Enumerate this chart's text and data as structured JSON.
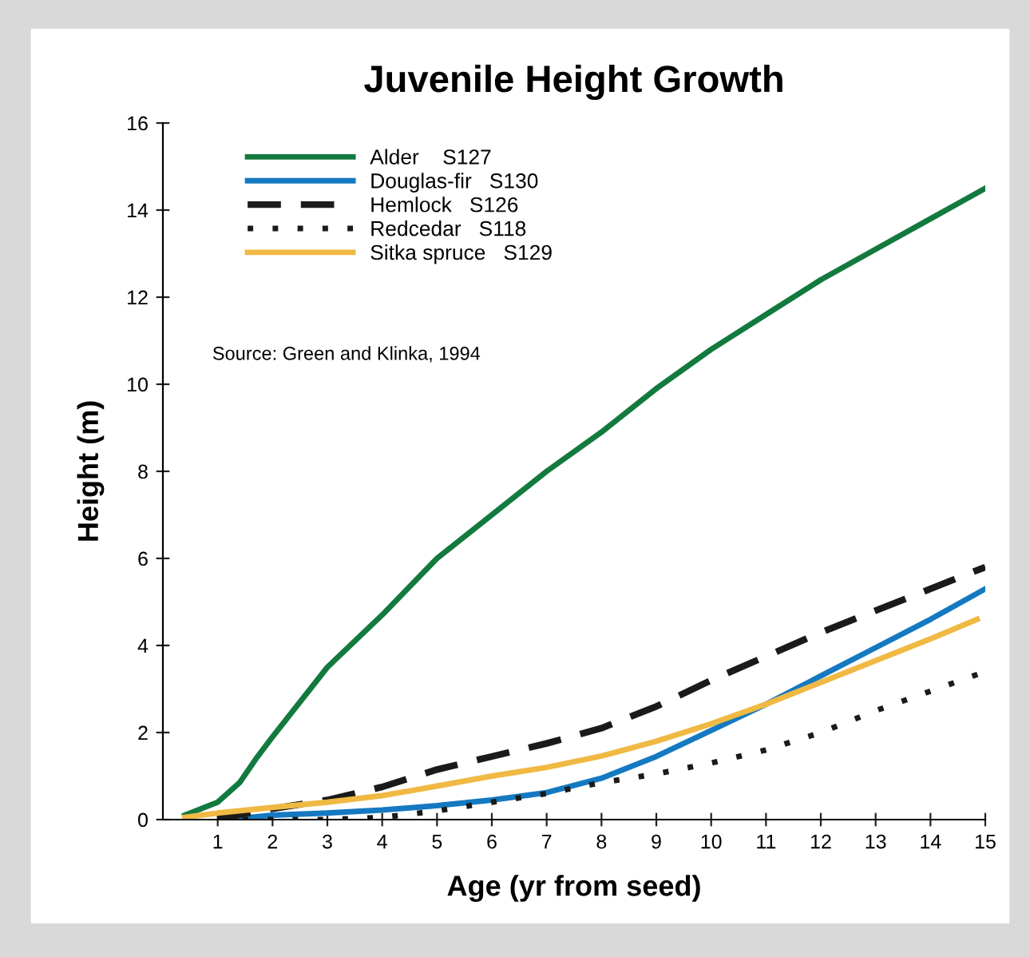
{
  "chart_data": {
    "type": "line",
    "title": "Juvenile Height Growth",
    "xlabel": "Age (yr from seed)",
    "ylabel": "Height (m)",
    "xlim": [
      0,
      15
    ],
    "xticks": [
      1,
      2,
      3,
      4,
      5,
      6,
      7,
      8,
      9,
      10,
      11,
      12,
      13,
      14,
      15
    ],
    "ylim": [
      0,
      16
    ],
    "yticks": [
      0,
      2,
      4,
      6,
      8,
      10,
      12,
      14,
      16
    ],
    "grid": false,
    "legend": "top left",
    "annotations": [
      "Source: Green and Klinka, 1994"
    ],
    "series": [
      {
        "name": "Alder    S127",
        "color": "#137a3f",
        "line_style": "solid",
        "x": [
          0.4,
          1,
          1.4,
          1.7,
          2,
          3,
          4,
          5,
          6,
          7,
          8,
          9,
          10,
          11,
          12,
          13,
          14,
          15
        ],
        "values": [
          0.1,
          0.4,
          0.85,
          1.4,
          1.9,
          3.5,
          4.7,
          6.0,
          7.0,
          8.0,
          8.9,
          9.9,
          10.8,
          11.6,
          12.4,
          13.1,
          13.8,
          14.5
        ]
      },
      {
        "name": "Douglas-fir   S130",
        "color": "#1479c1",
        "line_style": "solid",
        "x": [
          1.2,
          2,
          3,
          4,
          5,
          6,
          7,
          8,
          9,
          10,
          11,
          12,
          13,
          14,
          15
        ],
        "values": [
          0,
          0.1,
          0.15,
          0.22,
          0.32,
          0.45,
          0.62,
          0.95,
          1.45,
          2.05,
          2.65,
          3.3,
          3.95,
          4.6,
          5.3
        ]
      },
      {
        "name": "Hemlock   S126",
        "color": "#1a1a1a",
        "line_style": "dashed",
        "x": [
          1,
          2,
          3,
          4,
          5,
          6,
          7,
          8,
          9,
          10,
          11,
          12,
          13,
          14,
          15
        ],
        "values": [
          0.02,
          0.25,
          0.45,
          0.75,
          1.15,
          1.45,
          1.75,
          2.1,
          2.6,
          3.2,
          3.75,
          4.3,
          4.8,
          5.3,
          5.8
        ]
      },
      {
        "name": "Redcedar   S118",
        "color": "#1a1a1a",
        "line_style": "dotted",
        "x": [
          1,
          2,
          3,
          4,
          5,
          6,
          7,
          8,
          9,
          10,
          11,
          12,
          13,
          14,
          15
        ],
        "values": [
          0,
          0,
          0,
          0.05,
          0.2,
          0.4,
          0.6,
          0.85,
          1.05,
          1.3,
          1.6,
          2.0,
          2.5,
          2.95,
          3.4
        ]
      },
      {
        "name": "Sitka spruce   S129",
        "color": "#f0b943",
        "line_style": "solid",
        "x": [
          0.4,
          1,
          2,
          3,
          4,
          5,
          6,
          7,
          8,
          9,
          10,
          11,
          12,
          13,
          14,
          14.85
        ],
        "values": [
          0.05,
          0.15,
          0.28,
          0.4,
          0.55,
          0.77,
          1.0,
          1.2,
          1.46,
          1.8,
          2.2,
          2.65,
          3.15,
          3.65,
          4.15,
          4.6
        ]
      }
    ]
  }
}
